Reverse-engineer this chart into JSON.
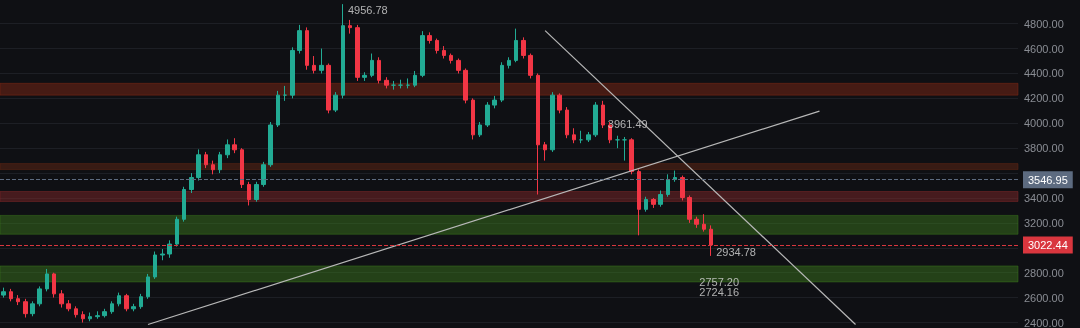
{
  "chart_data": {
    "type": "candlestick",
    "categories": [
      null,
      null,
      null,
      null,
      null,
      null,
      null,
      null,
      null,
      null,
      null,
      null,
      null,
      null,
      null,
      null,
      null,
      null,
      null,
      null,
      null,
      null,
      null,
      null,
      null,
      null,
      null,
      null,
      null,
      null,
      null,
      null,
      null,
      null,
      null,
      null,
      null,
      null,
      null,
      null,
      null,
      null,
      null,
      null,
      null,
      null,
      null,
      null,
      null,
      null,
      null,
      null,
      null,
      null,
      null,
      null,
      null,
      null,
      null,
      null,
      null,
      null,
      null,
      null,
      null,
      null,
      null,
      null,
      null,
      null,
      null,
      null,
      null,
      null,
      null,
      null,
      null,
      null,
      null,
      null,
      null,
      null,
      null,
      null,
      null,
      null,
      null,
      null,
      null,
      null,
      null,
      null,
      null,
      null,
      null,
      null,
      null,
      null,
      null,
      null,
      null,
      null,
      null,
      null,
      null,
      null,
      null,
      null,
      null,
      null,
      null,
      null,
      null,
      null,
      null,
      null,
      null,
      null,
      null,
      null,
      null,
      null,
      null,
      null,
      null,
      null,
      null,
      null,
      null,
      null,
      null,
      null,
      null,
      null,
      null,
      null,
      null,
      null,
      null,
      null,
      null
    ],
    "ohlc": [
      [
        2620,
        2680,
        2600,
        2647
      ],
      [
        2647,
        2670,
        2570,
        2591
      ],
      [
        2591,
        2620,
        2540,
        2567
      ],
      [
        2567,
        2590,
        2440,
        2471
      ],
      [
        2471,
        2570,
        2450,
        2550
      ],
      [
        2550,
        2690,
        2530,
        2670
      ],
      [
        2670,
        2830,
        2650,
        2790
      ],
      [
        2790,
        2800,
        2600,
        2630
      ],
      [
        2630,
        2660,
        2520,
        2550
      ],
      [
        2550,
        2580,
        2490,
        2510
      ],
      [
        2510,
        2530,
        2440,
        2463
      ],
      [
        2463,
        2490,
        2400,
        2430
      ],
      [
        2430,
        2480,
        2410,
        2447
      ],
      [
        2447,
        2490,
        2430,
        2455
      ],
      [
        2455,
        2510,
        2440,
        2487
      ],
      [
        2487,
        2570,
        2470,
        2550
      ],
      [
        2550,
        2640,
        2530,
        2615
      ],
      [
        2615,
        2630,
        2490,
        2510
      ],
      [
        2510,
        2550,
        2490,
        2527
      ],
      [
        2527,
        2630,
        2510,
        2607
      ],
      [
        2607,
        2790,
        2590,
        2766
      ],
      [
        2766,
        2970,
        2750,
        2942
      ],
      [
        2942,
        2990,
        2900,
        2950
      ],
      [
        2950,
        3060,
        2920,
        3030
      ],
      [
        3030,
        3250,
        3010,
        3229
      ],
      [
        3229,
        3490,
        3210,
        3468
      ],
      [
        3468,
        3600,
        3440,
        3564
      ],
      [
        3564,
        3790,
        3540,
        3747
      ],
      [
        3747,
        3770,
        3640,
        3667
      ],
      [
        3667,
        3700,
        3590,
        3627
      ],
      [
        3627,
        3770,
        3600,
        3747
      ],
      [
        3747,
        3870,
        3720,
        3827
      ],
      [
        3827,
        3880,
        3760,
        3787
      ],
      [
        3787,
        3800,
        3480,
        3508
      ],
      [
        3508,
        3530,
        3340,
        3388
      ],
      [
        3388,
        3530,
        3370,
        3508
      ],
      [
        3508,
        3690,
        3490,
        3667
      ],
      [
        3667,
        4010,
        3650,
        3986
      ],
      [
        3986,
        4260,
        3970,
        4226
      ],
      [
        4226,
        4300,
        4180,
        4226
      ],
      [
        4226,
        4610,
        4200,
        4585
      ],
      [
        4585,
        4790,
        4560,
        4744
      ],
      [
        4744,
        4770,
        4430,
        4465
      ],
      [
        4465,
        4540,
        4400,
        4425
      ],
      [
        4425,
        4600,
        4400,
        4465
      ],
      [
        4465,
        4480,
        4080,
        4106
      ],
      [
        4106,
        4250,
        4090,
        4226
      ],
      [
        4226,
        4956.78,
        4200,
        4784
      ],
      [
        4784,
        4830,
        4720,
        4768
      ],
      [
        4768,
        4790,
        4340,
        4369
      ],
      [
        4369,
        4410,
        4340,
        4385
      ],
      [
        4385,
        4560,
        4370,
        4505
      ],
      [
        4505,
        4530,
        4320,
        4345
      ],
      [
        4345,
        4370,
        4280,
        4306
      ],
      [
        4306,
        4340,
        4270,
        4306
      ],
      [
        4306,
        4350,
        4280,
        4306
      ],
      [
        4306,
        4360,
        4280,
        4306
      ],
      [
        4306,
        4420,
        4290,
        4385
      ],
      [
        4385,
        4740,
        4370,
        4704
      ],
      [
        4704,
        4730,
        4640,
        4665
      ],
      [
        4665,
        4680,
        4560,
        4585
      ],
      [
        4585,
        4620,
        4520,
        4545
      ],
      [
        4545,
        4560,
        4480,
        4505
      ],
      [
        4505,
        4520,
        4400,
        4425
      ],
      [
        4425,
        4440,
        4160,
        4186
      ],
      [
        4186,
        4200,
        3870,
        3907
      ],
      [
        3907,
        4010,
        3890,
        3986
      ],
      [
        3986,
        4170,
        3970,
        4146
      ],
      [
        4146,
        4220,
        4120,
        4186
      ],
      [
        4186,
        4490,
        4170,
        4465
      ],
      [
        4465,
        4530,
        4440,
        4505
      ],
      [
        4505,
        4760,
        4490,
        4665
      ],
      [
        4665,
        4690,
        4520,
        4545
      ],
      [
        4545,
        4560,
        4360,
        4385
      ],
      [
        4385,
        4400,
        3428,
        3827
      ],
      [
        3827,
        3850,
        3700,
        3787
      ],
      [
        3787,
        4250,
        3770,
        4226
      ],
      [
        4226,
        4240,
        4080,
        4106
      ],
      [
        4106,
        4130,
        3880,
        3907
      ],
      [
        3907,
        3960,
        3840,
        3867
      ],
      [
        3867,
        3940,
        3840,
        3867
      ],
      [
        3867,
        3930,
        3850,
        3907
      ],
      [
        3907,
        4170,
        3890,
        4146
      ],
      [
        4146,
        4180,
        3961.49,
        3986
      ],
      [
        3986,
        4010,
        3840,
        3867
      ],
      [
        3867,
        3900,
        3800,
        3867
      ],
      [
        3867,
        3890,
        3700,
        3867
      ],
      [
        3867,
        3880,
        3590,
        3612
      ],
      [
        3612,
        3630,
        3100,
        3309
      ],
      [
        3309,
        3410,
        3290,
        3388
      ],
      [
        3388,
        3400,
        3320,
        3349
      ],
      [
        3349,
        3460,
        3330,
        3428
      ],
      [
        3428,
        3590,
        3410,
        3548
      ],
      [
        3548,
        3620,
        3530,
        3564
      ],
      [
        3564,
        3580,
        3380,
        3404
      ],
      [
        3404,
        3420,
        3200,
        3229
      ],
      [
        3229,
        3250,
        3160,
        3189
      ],
      [
        3189,
        3270,
        3130,
        3149
      ],
      [
        3149,
        3180,
        2934.78,
        3022.44
      ],
      null,
      null,
      null,
      null,
      null,
      null,
      null,
      null,
      null,
      null,
      null,
      null,
      null,
      null,
      null,
      null,
      null,
      null,
      null,
      null,
      null,
      null,
      null,
      null,
      null,
      null,
      null,
      null,
      null,
      null,
      null,
      null,
      null,
      null,
      null,
      null,
      null,
      null,
      null,
      null,
      null,
      null
    ],
    "series": [
      {
        "type": "line",
        "color": "#b8b8b8",
        "values": [
          null,
          null,
          null,
          null,
          null,
          null,
          null,
          null,
          null,
          null,
          null,
          null,
          null,
          null,
          null,
          null,
          null,
          null,
          null,
          null,
          2384,
          null,
          null,
          null,
          null,
          null,
          null,
          null,
          null,
          null,
          null,
          null,
          null,
          null,
          null,
          null,
          null,
          null,
          null,
          null,
          null,
          null,
          null,
          null,
          null,
          null,
          null,
          null,
          null,
          null,
          null,
          null,
          null,
          null,
          null,
          null,
          null,
          null,
          null,
          null,
          null,
          null,
          null,
          null,
          null,
          null,
          null,
          null,
          null,
          null,
          null,
          null,
          null,
          null,
          null,
          null,
          null,
          null,
          null,
          null,
          null,
          null,
          null,
          null,
          null,
          null,
          null,
          null,
          null,
          null,
          null,
          null,
          null,
          null,
          null,
          null,
          null,
          null,
          null,
          null,
          null,
          null,
          null,
          null,
          null,
          null,
          null,
          null,
          null,
          null,
          null,
          null,
          null,
          4098,
          null,
          null,
          null,
          null,
          null,
          null,
          null,
          null,
          null,
          null,
          null,
          null,
          null,
          null,
          null,
          null,
          null,
          null,
          null,
          null,
          null,
          null,
          null,
          null,
          null,
          null,
          null
        ]
      },
      {
        "type": "line",
        "color": "#b8b8b8",
        "values": [
          null,
          null,
          null,
          null,
          null,
          null,
          null,
          null,
          null,
          null,
          null,
          null,
          null,
          null,
          null,
          null,
          null,
          null,
          null,
          null,
          null,
          null,
          null,
          null,
          null,
          null,
          null,
          null,
          null,
          null,
          null,
          null,
          null,
          null,
          null,
          null,
          null,
          null,
          null,
          null,
          null,
          null,
          null,
          null,
          null,
          null,
          null,
          null,
          null,
          null,
          null,
          null,
          null,
          null,
          null,
          null,
          null,
          null,
          null,
          null,
          null,
          null,
          null,
          null,
          null,
          null,
          null,
          null,
          null,
          null,
          null,
          null,
          null,
          null,
          null,
          4744,
          null,
          null,
          null,
          null,
          null,
          null,
          null,
          null,
          null,
          null,
          null,
          null,
          null,
          null,
          null,
          null,
          null,
          null,
          null,
          null,
          null,
          null,
          null,
          null,
          null,
          null,
          null,
          null,
          null,
          null,
          null,
          null,
          null,
          null,
          null,
          null,
          null,
          null,
          null,
          null,
          null,
          null,
          2384,
          null,
          null,
          null,
          null,
          null,
          null,
          null,
          null,
          null,
          null,
          null,
          null,
          null,
          null,
          null,
          null,
          null,
          null,
          null,
          null,
          null,
          null
        ]
      }
    ],
    "ylim": [
      2380,
      4990
    ],
    "yticks": [
      {
        "value": 2400,
        "label": "2400.00"
      },
      {
        "value": 2600,
        "label": "2600.00"
      },
      {
        "value": 2800,
        "label": "2800.00"
      },
      {
        "value": 3000,
        "label": null
      },
      {
        "value": 3200,
        "label": "3200.00"
      },
      {
        "value": 3400,
        "label": "3400.00"
      },
      {
        "value": 3600,
        "label": null
      },
      {
        "value": 3800,
        "label": "3800.00"
      },
      {
        "value": 4000,
        "label": "4000.00"
      },
      {
        "value": 4200,
        "label": "4200.00"
      },
      {
        "value": 4400,
        "label": "4400.00"
      },
      {
        "value": 4600,
        "label": "4600.00"
      },
      {
        "value": 4800,
        "label": "4800.00"
      }
    ],
    "tick_labels": "y",
    "grid": "y",
    "ref_lines": [
      {
        "axis": "y",
        "value": 3546.95,
        "label": "3546.95",
        "color": "#5d6b80",
        "line_style": "dashed"
      },
      {
        "axis": "y",
        "value": 3022.44,
        "label": "3022.44",
        "color": "#d9363e",
        "line_style": "dashed"
      }
    ],
    "bands": [
      {
        "axis": "y",
        "from": 2726,
        "to": 2854,
        "color": "#3f7f1c"
      },
      {
        "axis": "y",
        "from": 4226,
        "to": 4321,
        "color": "#8a2a14"
      },
      {
        "axis": "y",
        "from": 3628,
        "to": 3676,
        "color": "#6b2a14"
      },
      {
        "axis": "y",
        "from": 3372,
        "to": 3452,
        "color": "#8a2a2a"
      },
      {
        "axis": "y",
        "from": 3109,
        "to": 3260,
        "color": "#3f7f1c"
      }
    ],
    "annotations": [
      "4956.78",
      "3961.49",
      "2934.78",
      "2757.20",
      "2724.16"
    ]
  }
}
